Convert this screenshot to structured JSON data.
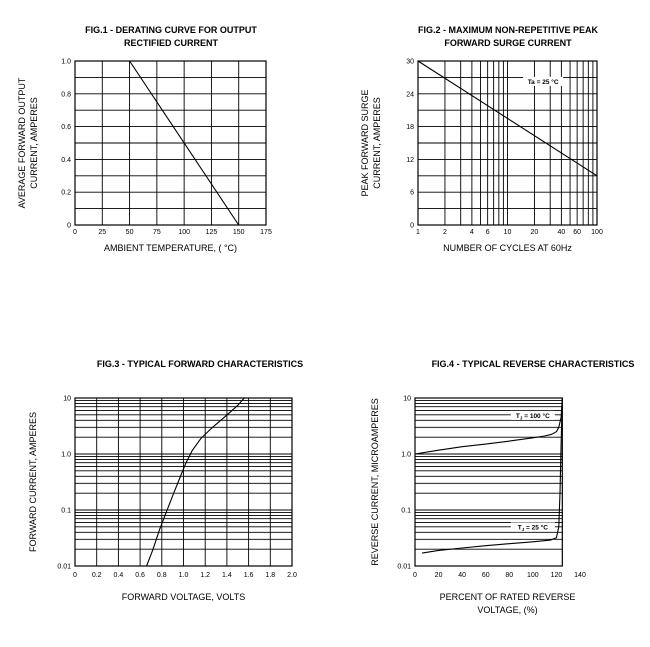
{
  "chart_data": [
    {
      "type": "line",
      "title": [
        "FIG.1 - DERATING CURVE FOR OUTPUT",
        "RECTIFIED CURRENT"
      ],
      "xlabel": "AMBIENT TEMPERATURE, ( °C)",
      "ylabel": [
        "AVERAGE FORWARD OUTPUT",
        "CURRENT, AMPERES"
      ],
      "xlim": [
        0,
        175
      ],
      "ylim": [
        0,
        1.0
      ],
      "xticks": [
        0,
        25,
        50,
        75,
        100,
        125,
        150,
        175
      ],
      "xtick_labels": [
        "0",
        "25",
        "50",
        "75",
        "100",
        "125",
        "150",
        "175"
      ],
      "yticks": [
        0,
        0.2,
        0.4,
        0.6,
        0.8,
        1.0
      ],
      "ytick_labels": [
        "0",
        "0.2",
        "0.4",
        "0.6",
        "0.8",
        "1.0"
      ],
      "xgrid": [
        25,
        50,
        75,
        100,
        125,
        150
      ],
      "ygrid": [
        0.1,
        0.2,
        0.3,
        0.4,
        0.5,
        0.6,
        0.7,
        0.8,
        0.9
      ],
      "grid": true,
      "series": [
        {
          "x": [
            0,
            50,
            150
          ],
          "y": [
            1.0,
            1.0,
            0
          ]
        }
      ],
      "annotations": []
    },
    {
      "type": "line",
      "title": [
        "FIG.2 - MAXIMUM NON-REPETITIVE PEAK",
        "FORWARD SURGE CURRENT"
      ],
      "xlabel": "NUMBER OF CYCLES AT 60Hz",
      "ylabel": [
        "PEAK FORWARD SURGE",
        "CURRENT, AMPERES"
      ],
      "xscale": "log",
      "yscale": "linear",
      "xlim": [
        1,
        100
      ],
      "ylim": [
        0,
        30
      ],
      "xticks": [
        1,
        2,
        4,
        6,
        10,
        20,
        40,
        60,
        100
      ],
      "xtick_labels": [
        "1",
        "2",
        "4",
        "6",
        "10",
        "20",
        "40",
        "60",
        "100"
      ],
      "yticks": [
        0,
        6,
        12,
        18,
        24,
        30
      ],
      "ytick_labels": [
        "0",
        "6",
        "12",
        "18",
        "24",
        "30"
      ],
      "xgrid": [
        2,
        3,
        4,
        5,
        6,
        7,
        8,
        9,
        10,
        20,
        30,
        40,
        50,
        60,
        70,
        80,
        90
      ],
      "ygrid": [
        3,
        6,
        9,
        12,
        15,
        18,
        21,
        24,
        27
      ],
      "grid": true,
      "series": [
        {
          "x": [
            1,
            100
          ],
          "y": [
            30,
            9
          ]
        }
      ],
      "annotations": [
        {
          "text": "Ta = 25 °C",
          "x": 25,
          "y": 26
        }
      ]
    },
    {
      "type": "line",
      "title": [
        "FIG.3 - TYPICAL FORWARD CHARACTERISTICS"
      ],
      "xlabel": "FORWARD VOLTAGE, VOLTS",
      "ylabel": [
        "FORWARD CURRENT,  AMPERES"
      ],
      "xscale": "linear",
      "yscale": "log",
      "xlim": [
        0,
        2.0
      ],
      "ylim": [
        0.01,
        10
      ],
      "xticks": [
        0,
        0.2,
        0.4,
        0.6,
        0.8,
        1.0,
        1.2,
        1.4,
        1.6,
        1.8,
        2.0
      ],
      "xtick_labels": [
        "0",
        "0.2",
        "0.4",
        "0.6",
        "0.8",
        "1.0",
        "1.2",
        "1.4",
        "1.6",
        "1.8",
        "2.0"
      ],
      "yticks": [
        0.01,
        0.1,
        1,
        10
      ],
      "ytick_labels": [
        "0.01",
        "0.1",
        "1.0",
        "10"
      ],
      "xgrid": [
        0.2,
        0.4,
        0.6,
        0.8,
        1.0,
        1.2,
        1.4,
        1.6,
        1.8
      ],
      "ygrid": [
        0.02,
        0.03,
        0.04,
        0.05,
        0.06,
        0.07,
        0.08,
        0.09,
        0.1,
        0.2,
        0.3,
        0.4,
        0.5,
        0.6,
        0.7,
        0.8,
        0.9,
        1,
        2,
        3,
        4,
        5,
        6,
        7,
        8,
        9
      ],
      "grid": true,
      "series": [
        {
          "x": [
            0.66,
            0.72,
            0.78,
            0.84,
            0.9,
            0.96,
            1.02,
            1.08,
            1.16,
            1.26,
            1.38,
            1.5,
            1.56
          ],
          "y": [
            0.01,
            0.02,
            0.045,
            0.09,
            0.18,
            0.35,
            0.68,
            1.15,
            1.9,
            2.9,
            4.6,
            7.4,
            10
          ]
        }
      ],
      "annotations": []
    },
    {
      "type": "line",
      "title": [
        "FIG.4 - TYPICAL REVERSE CHARACTERISTICS"
      ],
      "xlabel": [
        "PERCENT OF RATED REVERSE",
        "VOLTAGE, (%)"
      ],
      "ylabel": [
        "REVERSE CURRENT, MICROAMPERES"
      ],
      "xscale": "linear",
      "yscale": "log",
      "xlim": [
        0,
        140
      ],
      "ylim": [
        0.01,
        10
      ],
      "plot_xmax": 125,
      "xticks": [
        0,
        20,
        40,
        60,
        80,
        100,
        120,
        140
      ],
      "xtick_labels": [
        "0",
        "20",
        "40",
        "60",
        "80",
        "100",
        "120",
        "140"
      ],
      "yticks": [
        0.01,
        0.1,
        1,
        10
      ],
      "ytick_labels": [
        "0.01",
        "0.1",
        "1.0",
        "10"
      ],
      "xgrid": [],
      "ygrid": [
        0.02,
        0.03,
        0.04,
        0.05,
        0.06,
        0.07,
        0.08,
        0.09,
        0.1,
        0.2,
        0.3,
        0.4,
        0.5,
        0.6,
        0.7,
        0.8,
        0.9,
        1,
        2,
        3,
        4,
        5,
        6,
        7,
        8,
        9
      ],
      "grid": true,
      "series": [
        {
          "label": "TJ = 100 °C",
          "x": [
            0,
            20,
            40,
            60,
            80,
            100,
            110,
            116,
            120,
            122,
            124,
            125
          ],
          "y": [
            1.0,
            1.17,
            1.35,
            1.5,
            1.7,
            1.95,
            2.1,
            2.25,
            2.5,
            3.0,
            4.5,
            10
          ]
        },
        {
          "label": "TJ = 25 °C",
          "x": [
            6,
            20,
            40,
            60,
            80,
            100,
            115,
            120,
            122,
            123,
            124,
            125
          ],
          "y": [
            0.017,
            0.019,
            0.021,
            0.023,
            0.025,
            0.027,
            0.029,
            0.032,
            0.05,
            0.2,
            1.5,
            10
          ]
        }
      ],
      "annotations": [
        {
          "text": "TJ = 100 °C",
          "x": 100,
          "y": 4.6
        },
        {
          "text": "TJ = 25 °C",
          "x": 100,
          "y": 0.047
        }
      ]
    }
  ]
}
